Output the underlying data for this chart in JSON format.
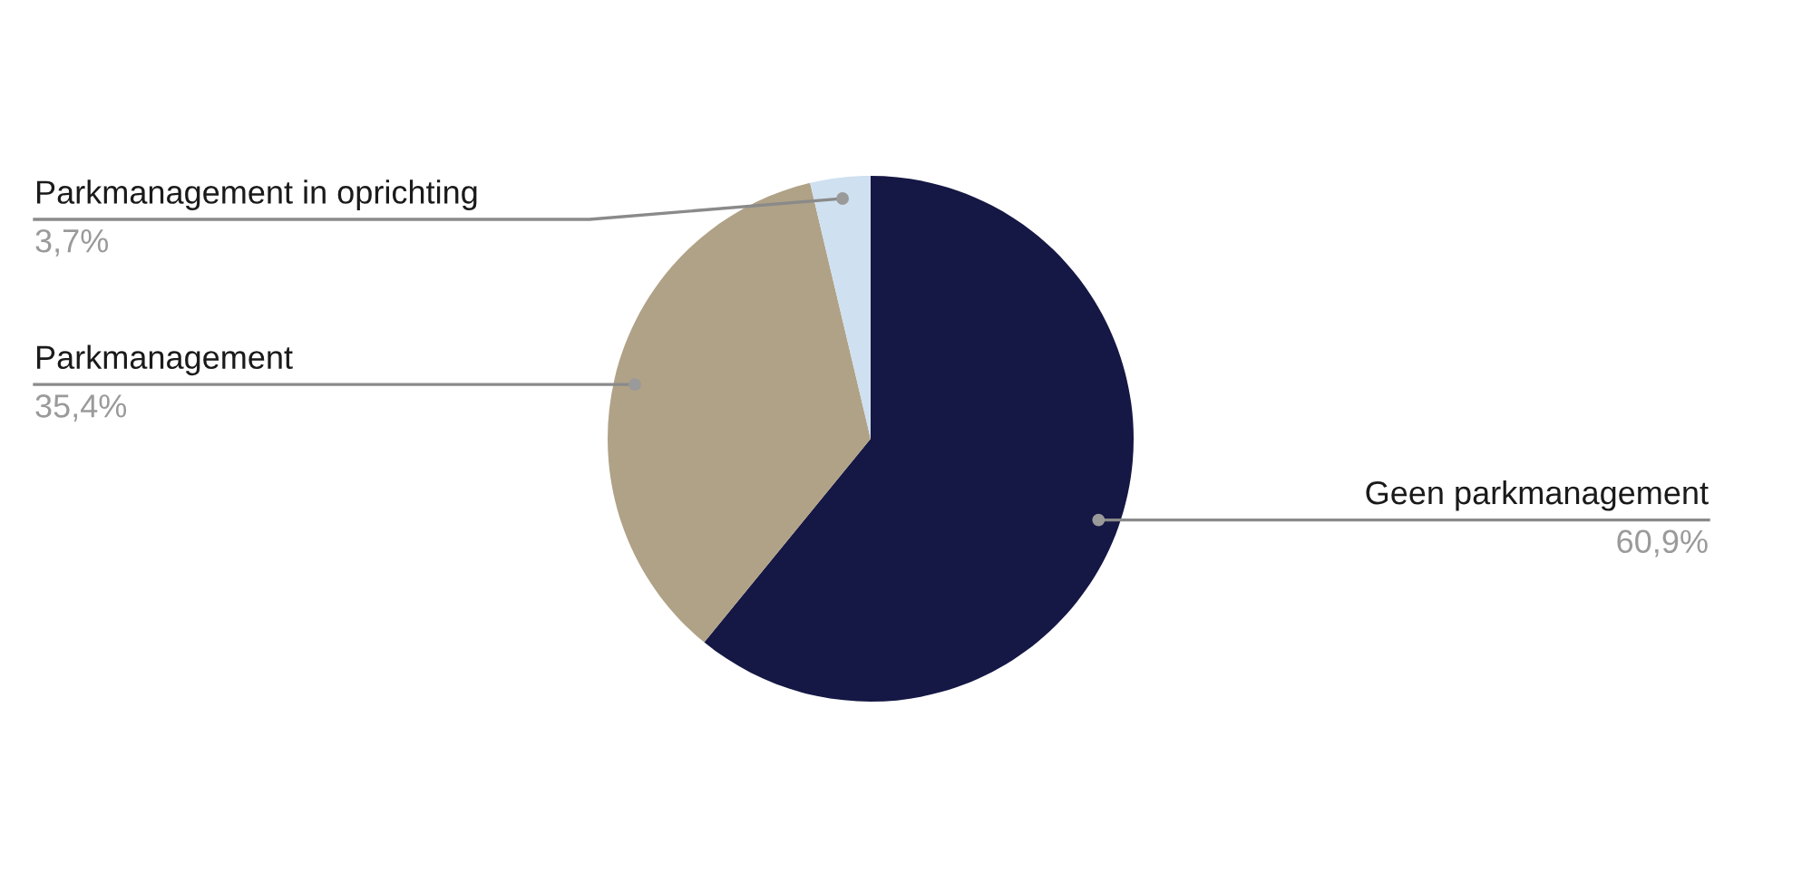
{
  "chart_data": {
    "type": "pie",
    "categories": [
      "Geen parkmanagement",
      "Parkmanagement",
      "Parkmanagement in oprichting"
    ],
    "values": [
      60.9,
      35.4,
      3.7
    ],
    "colors": [
      "#151744",
      "#b0a287",
      "#cfe0f0"
    ],
    "value_labels": [
      "60,9%",
      "35,4%",
      "3,7%"
    ]
  }
}
